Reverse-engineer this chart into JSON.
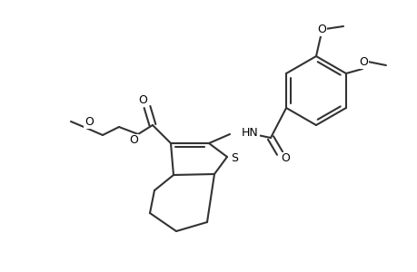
{
  "bg": "#ffffff",
  "lc": "#333333",
  "lw": 1.5,
  "fs": 8.5,
  "figsize": [
    4.6,
    3.0
  ],
  "dpi": 100,
  "xlim": [
    0,
    460
  ],
  "ylim": [
    0,
    300
  ]
}
